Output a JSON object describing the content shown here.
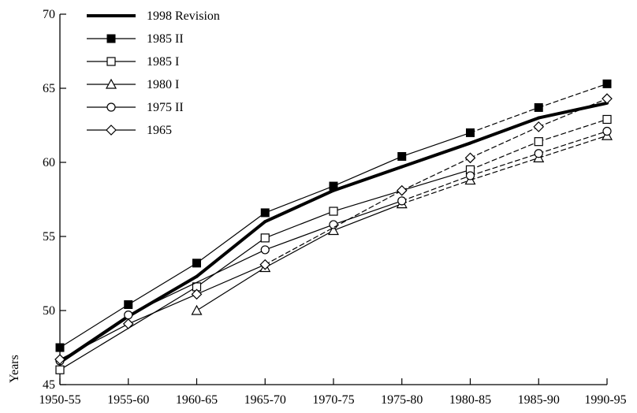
{
  "chart_data": {
    "type": "line",
    "ylabel": "Years",
    "xlabel": "",
    "ylim": [
      45,
      70
    ],
    "yticks": [
      45,
      50,
      55,
      60,
      65,
      70
    ],
    "categories": [
      "1950-55",
      "1955-60",
      "1960-65",
      "1965-70",
      "1970-75",
      "1975-80",
      "1980-85",
      "1985-90",
      "1990-95"
    ],
    "grid": false,
    "legend_position": "top-left",
    "series": [
      {
        "name": "1998 Revision",
        "marker": "none",
        "style": "thick",
        "values": [
          46.5,
          49.6,
          52.3,
          56.0,
          58.1,
          59.7,
          61.3,
          63.0,
          64.0
        ],
        "color": "#000000"
      },
      {
        "name": "1985 II",
        "marker": "filled-square",
        "style": "solid-then-dashed",
        "dash_from": 6,
        "values": [
          47.5,
          50.4,
          53.2,
          56.6,
          58.4,
          60.4,
          62.0,
          63.7,
          65.3
        ],
        "color": "#000000"
      },
      {
        "name": "1985 I",
        "marker": "open-square",
        "style": "solid-then-dashed",
        "dash_from": 6,
        "values": [
          46.0,
          null,
          51.6,
          54.9,
          56.7,
          null,
          59.5,
          61.4,
          62.9
        ],
        "color": "#000000"
      },
      {
        "name": "1980 I",
        "marker": "open-triangle",
        "style": "solid-then-dashed",
        "dash_from": 5,
        "values": [
          null,
          null,
          50.0,
          52.9,
          55.4,
          57.2,
          58.8,
          60.3,
          61.8
        ],
        "color": "#000000"
      },
      {
        "name": "1975 II",
        "marker": "open-circle",
        "style": "solid-then-dashed",
        "dash_from": 5,
        "values": [
          46.6,
          49.7,
          null,
          54.1,
          55.8,
          57.4,
          59.1,
          60.6,
          62.1
        ],
        "color": "#000000"
      },
      {
        "name": "1965",
        "marker": "open-diamond",
        "style": "solid-then-dashed",
        "dash_from": 3,
        "values": [
          46.7,
          49.1,
          51.1,
          53.1,
          null,
          58.1,
          60.3,
          62.4,
          64.3
        ],
        "color": "#000000"
      }
    ]
  }
}
